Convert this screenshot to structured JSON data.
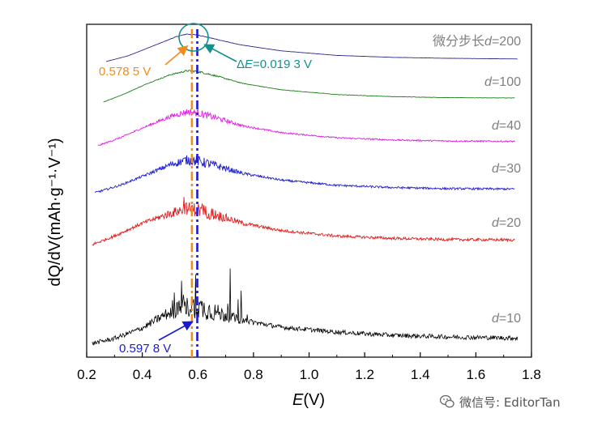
{
  "chart_data": {
    "type": "line",
    "xlabel_italic": "E",
    "xlabel_rest": "(V)",
    "ylabel": "dQ/dV(mAh·g⁻¹·V⁻¹)",
    "xlim": [
      0.2,
      1.8
    ],
    "x_ticks": [
      "0.2",
      "0.4",
      "0.6",
      "0.8",
      "1.0",
      "1.2",
      "1.4",
      "1.6",
      "1.8"
    ],
    "series": [
      {
        "name": "微分步长d=200",
        "color": "#2b2b8f",
        "x_start": 0.27,
        "x_end": 1.75,
        "x": [
          0.27,
          0.35,
          0.45,
          0.52,
          0.56,
          0.6,
          0.65,
          0.75,
          0.9,
          1.1,
          1.3,
          1.5,
          1.75
        ],
        "offset": [
          0.0,
          0.18,
          0.52,
          0.76,
          0.85,
          0.82,
          0.72,
          0.52,
          0.33,
          0.19,
          0.13,
          0.1,
          0.08
        ],
        "noise": 0.006
      },
      {
        "name": "d=100",
        "color": "#1d7f1d",
        "x_start": 0.26,
        "x_end": 1.74,
        "x": [
          0.26,
          0.33,
          0.42,
          0.5,
          0.56,
          0.6,
          0.66,
          0.76,
          0.9,
          1.1,
          1.3,
          1.5,
          1.74
        ],
        "offset": [
          0.0,
          0.22,
          0.55,
          0.8,
          0.92,
          0.9,
          0.78,
          0.55,
          0.36,
          0.22,
          0.16,
          0.13,
          0.12
        ],
        "noise": 0.015
      },
      {
        "name": "d=40",
        "color": "#e020e0",
        "x_start": 0.24,
        "x_end": 1.74,
        "x": [
          0.24,
          0.32,
          0.42,
          0.5,
          0.56,
          0.6,
          0.66,
          0.76,
          0.9,
          1.1,
          1.3,
          1.5,
          1.74
        ],
        "offset": [
          0.0,
          0.22,
          0.55,
          0.8,
          0.93,
          0.9,
          0.78,
          0.55,
          0.36,
          0.22,
          0.16,
          0.13,
          0.12
        ],
        "noise": 0.05
      },
      {
        "name": "d=30",
        "color": "#1f1fd0",
        "x_start": 0.23,
        "x_end": 1.74,
        "x": [
          0.23,
          0.32,
          0.42,
          0.5,
          0.56,
          0.6,
          0.66,
          0.76,
          0.9,
          1.1,
          1.3,
          1.5,
          1.74
        ],
        "offset": [
          0.0,
          0.2,
          0.5,
          0.75,
          0.88,
          0.85,
          0.74,
          0.52,
          0.34,
          0.2,
          0.14,
          0.11,
          0.1
        ],
        "noise": 0.07
      },
      {
        "name": "d=20",
        "color": "#e01f1f",
        "x_start": 0.22,
        "x_end": 1.74,
        "x": [
          0.22,
          0.3,
          0.4,
          0.5,
          0.56,
          0.6,
          0.66,
          0.76,
          0.9,
          1.1,
          1.3,
          1.5,
          1.74
        ],
        "offset": [
          0.0,
          0.22,
          0.55,
          0.8,
          0.93,
          0.9,
          0.78,
          0.55,
          0.36,
          0.22,
          0.16,
          0.13,
          0.12
        ],
        "noise": 0.09
      },
      {
        "name": "d=10",
        "color": "#000000",
        "x_start": 0.22,
        "x_end": 1.75,
        "x": [
          0.22,
          0.3,
          0.4,
          0.48,
          0.55,
          0.6,
          0.65,
          0.75,
          0.9,
          1.1,
          1.3,
          1.5,
          1.75
        ],
        "offset": [
          0.0,
          0.12,
          0.38,
          0.7,
          0.9,
          0.9,
          0.8,
          0.58,
          0.4,
          0.28,
          0.2,
          0.16,
          0.13
        ],
        "noise": 0.14
      }
    ],
    "vertical_lines": [
      {
        "x": 0.5785,
        "color": "#f08c1e",
        "label": "0.578 5 V"
      },
      {
        "x": 0.5978,
        "color": "#1a1ad4",
        "label": "0.597 8 V"
      }
    ],
    "delta_annotation": {
      "prefix": "Δ",
      "italic": "E",
      "rest": "=0.019 3 V",
      "color": "#13908c"
    }
  },
  "watermark": {
    "text": "微信号: EditorTan",
    "icon": "wechat-icon"
  }
}
